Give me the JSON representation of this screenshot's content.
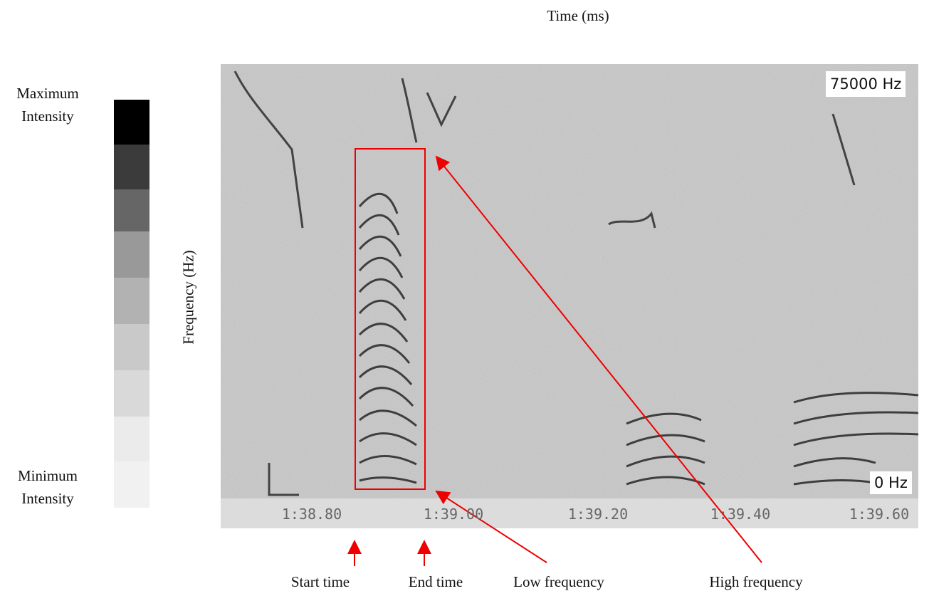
{
  "header": {
    "title": "Time (ms)",
    "y_label": "Frequency (Hz)"
  },
  "intensity_scale": {
    "max_label": "Maximum Intensity",
    "min_label": "Minimum Intensity"
  },
  "spectrogram": {
    "top_label": "75000 Hz",
    "bottom_label": "0 Hz",
    "time_labels": [
      "1:38.80",
      "1:39.00",
      "1:39.20",
      "1:39.40",
      "1:39.60"
    ]
  },
  "annotations": [
    "Start time",
    "End time",
    "Low frequency",
    "High frequency"
  ]
}
